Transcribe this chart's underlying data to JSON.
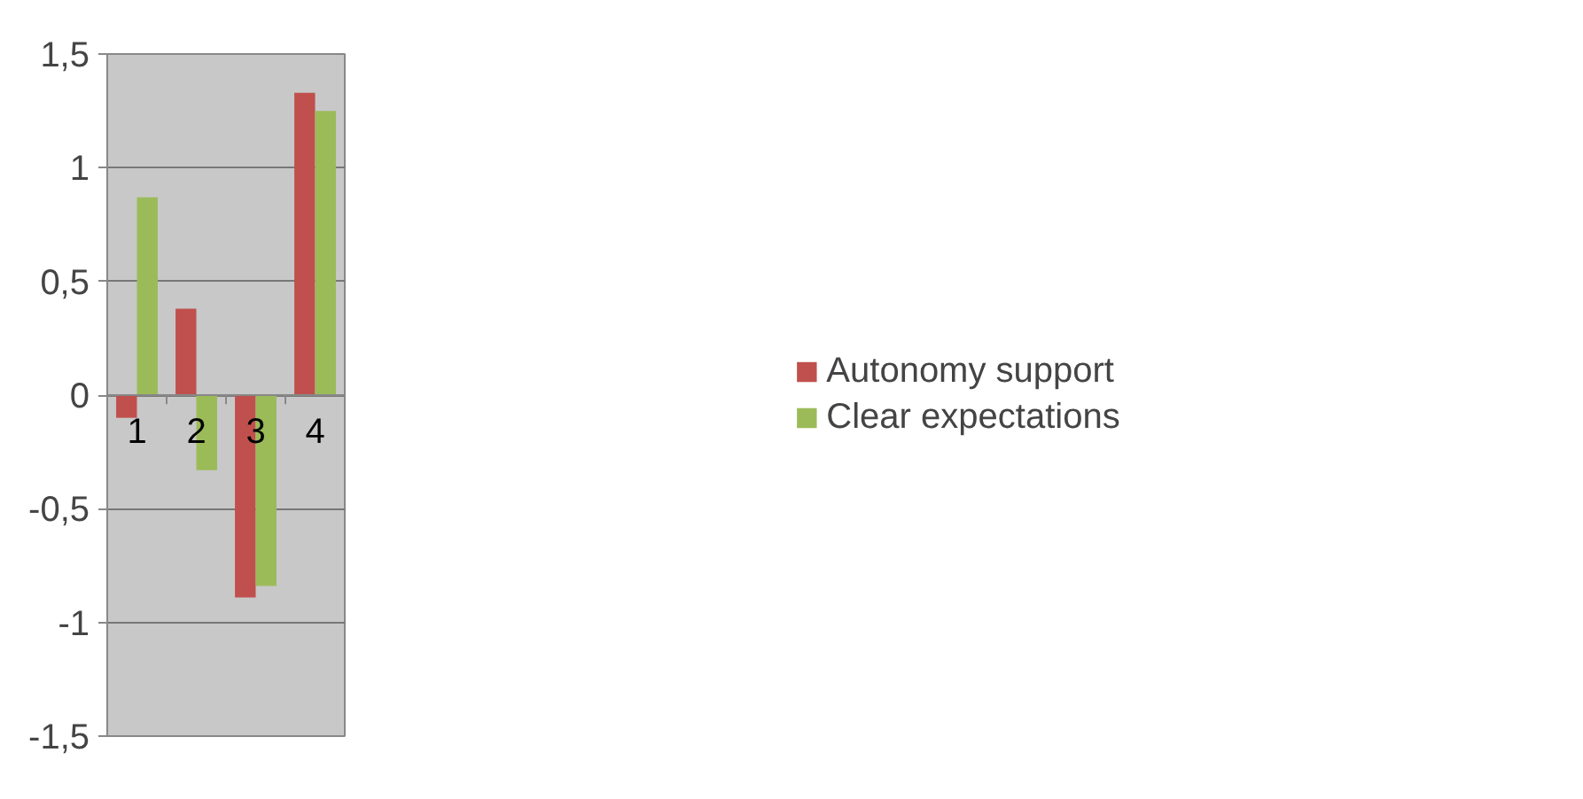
{
  "chart_data": {
    "type": "bar",
    "categories": [
      "1",
      "2",
      "3",
      "4"
    ],
    "series": [
      {
        "name": "Autonomy support",
        "color": "#c0504d",
        "values": [
          -0.1,
          0.38,
          -0.89,
          1.33
        ]
      },
      {
        "name": "Clear expectations",
        "color": "#9bbb59",
        "values": [
          0.87,
          -0.33,
          -0.84,
          1.25
        ]
      }
    ],
    "ylim": [
      -1.5,
      1.5
    ],
    "yticks": [
      {
        "value": -1.5,
        "label": "-1,5"
      },
      {
        "value": -1,
        "label": "-1"
      },
      {
        "value": -0.5,
        "label": "-0,5"
      },
      {
        "value": 0,
        "label": "0"
      },
      {
        "value": 0.5,
        "label": "0,5"
      },
      {
        "value": 1,
        "label": "1"
      },
      {
        "value": 1.5,
        "label": "1,5"
      }
    ],
    "grid": "y",
    "legend": "right"
  }
}
